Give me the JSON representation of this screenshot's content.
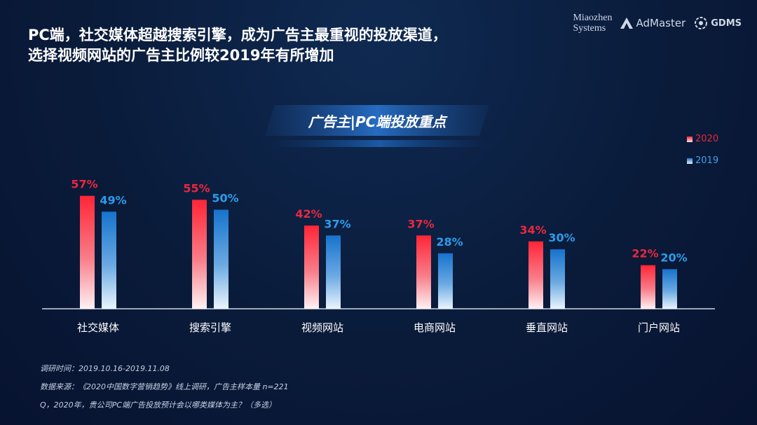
{
  "header": {
    "title_line1": "PC端，社交媒体超越搜索引擎，成为广告主最重视的投放渠道，",
    "title_line2": "选择视频网站的广告主比例较2019年有所增加",
    "logos": {
      "miaozhen_line1": "Miaozhen",
      "miaozhen_line2": "Systems",
      "admaster": "AdMaster",
      "gdms": "GDMS"
    }
  },
  "banner": {
    "title": "广告主|PC端投放重点"
  },
  "chart_data": {
    "type": "bar",
    "title": "广告主|PC端投放重点",
    "xlabel": "",
    "ylabel": "",
    "ylim": [
      0,
      60
    ],
    "categories": [
      "社交媒体",
      "搜索引擎",
      "视频网站",
      "电商网站",
      "垂直网站",
      "门户网站"
    ],
    "series": [
      {
        "name": "2020",
        "values": [
          57,
          55,
          42,
          37,
          34,
          22
        ],
        "labels": [
          "57%",
          "55%",
          "42%",
          "37%",
          "34%",
          "22%"
        ],
        "color": "#f0213a",
        "label_color": "#e8283f"
      },
      {
        "name": "2019",
        "values": [
          49,
          50,
          37,
          28,
          30,
          20
        ],
        "labels": [
          "49%",
          "50%",
          "37%",
          "28%",
          "30%",
          "20%"
        ],
        "color": "#1a78d0",
        "label_color": "#2f9be8"
      }
    ],
    "legend_position": "top-right",
    "grid": false
  },
  "footer": {
    "survey_time": "调研时间：2019.10.16-2019.11.08",
    "source": "数据来源：《2020中国数字营销趋势》线上调研，广告主样本量 n=221",
    "question": "Q，2020年，贵公司PC端广告投放预计会以哪类媒体为主？（多选）"
  }
}
